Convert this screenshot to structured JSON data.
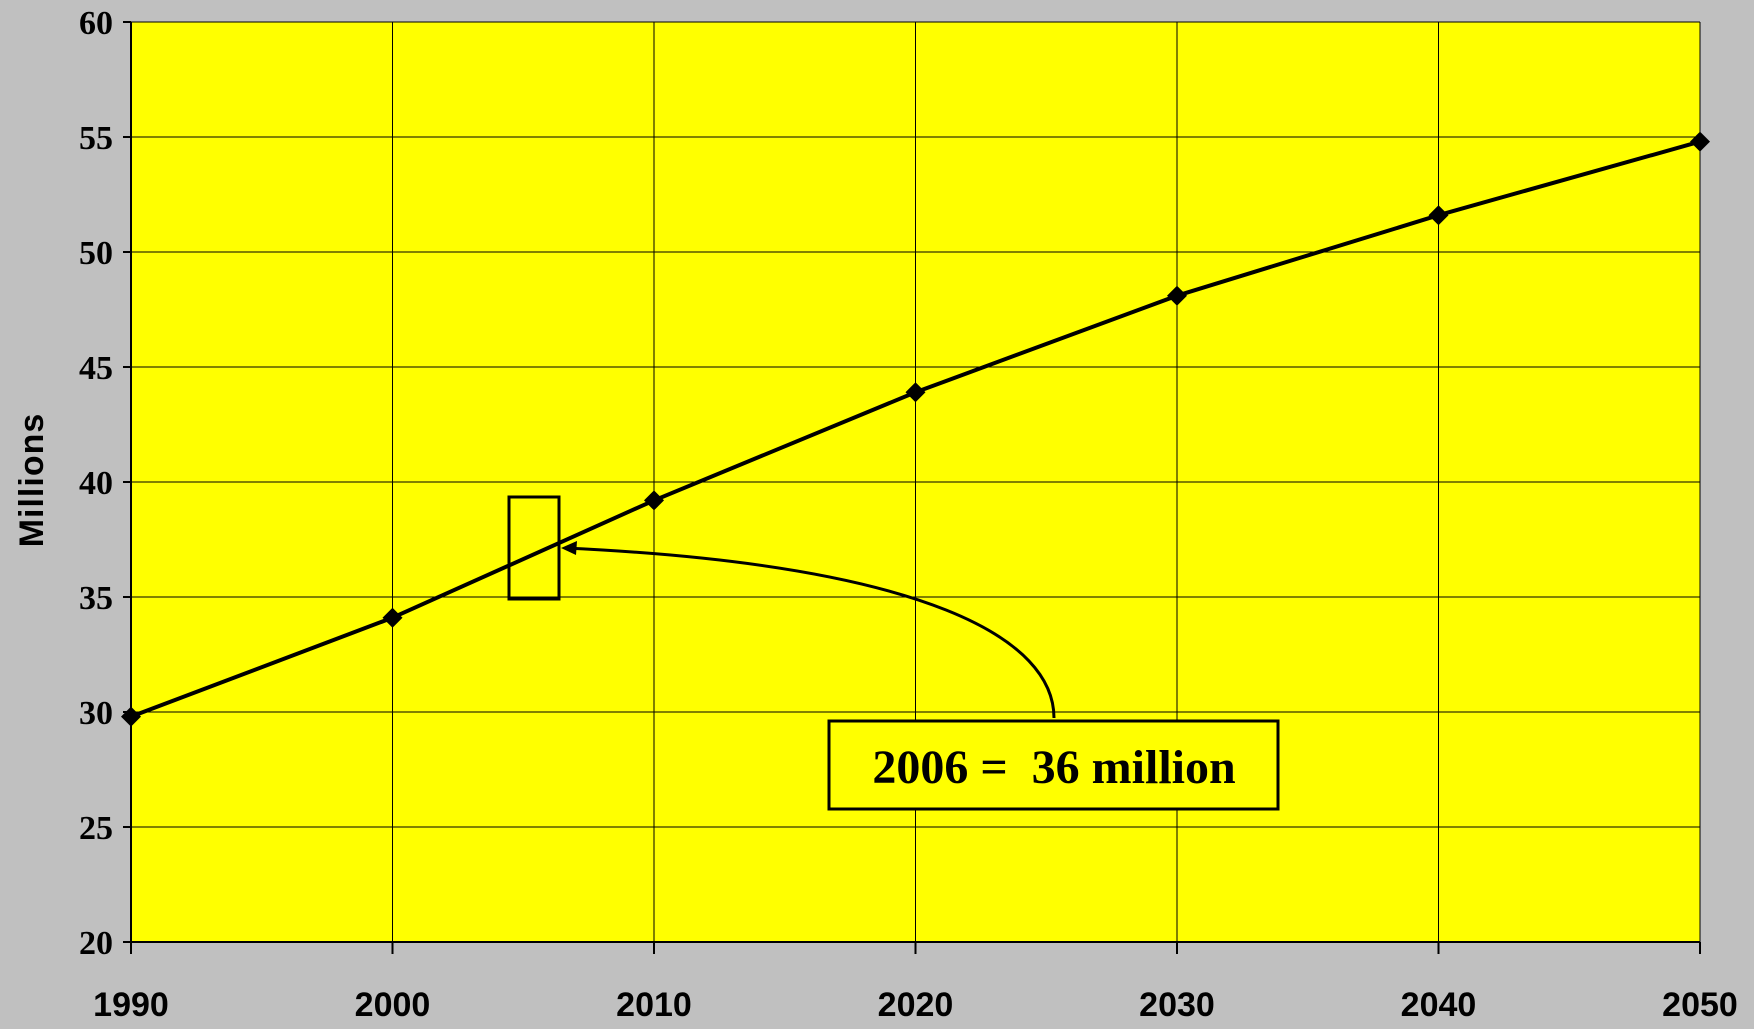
{
  "colors": {
    "background": "#c0c0c0",
    "plot_area": "#ffff00",
    "gridline": "#000000",
    "series_line": "#000000",
    "marker": "#000000"
  },
  "chart_data": {
    "type": "line",
    "title": "",
    "xlabel": "",
    "ylabel": "Millions",
    "x": [
      1990,
      2000,
      2010,
      2020,
      2030,
      2040,
      2050
    ],
    "series": [
      {
        "values": [
          29.8,
          34.1,
          39.2,
          43.9,
          48.1,
          51.6,
          54.8
        ],
        "marker": "diamond"
      }
    ],
    "xlim": [
      1990,
      2050
    ],
    "ylim": [
      20,
      60
    ],
    "x_ticks": [
      "1990",
      "2000",
      "2010",
      "2020",
      "2030",
      "2040",
      "2050"
    ],
    "y_ticks": [
      "20",
      "25",
      "30",
      "35",
      "40",
      "45",
      "50",
      "55",
      "60"
    ],
    "grid": true,
    "annotation": {
      "text": "2006 =  36 million",
      "x": 2006,
      "y": 36
    }
  }
}
